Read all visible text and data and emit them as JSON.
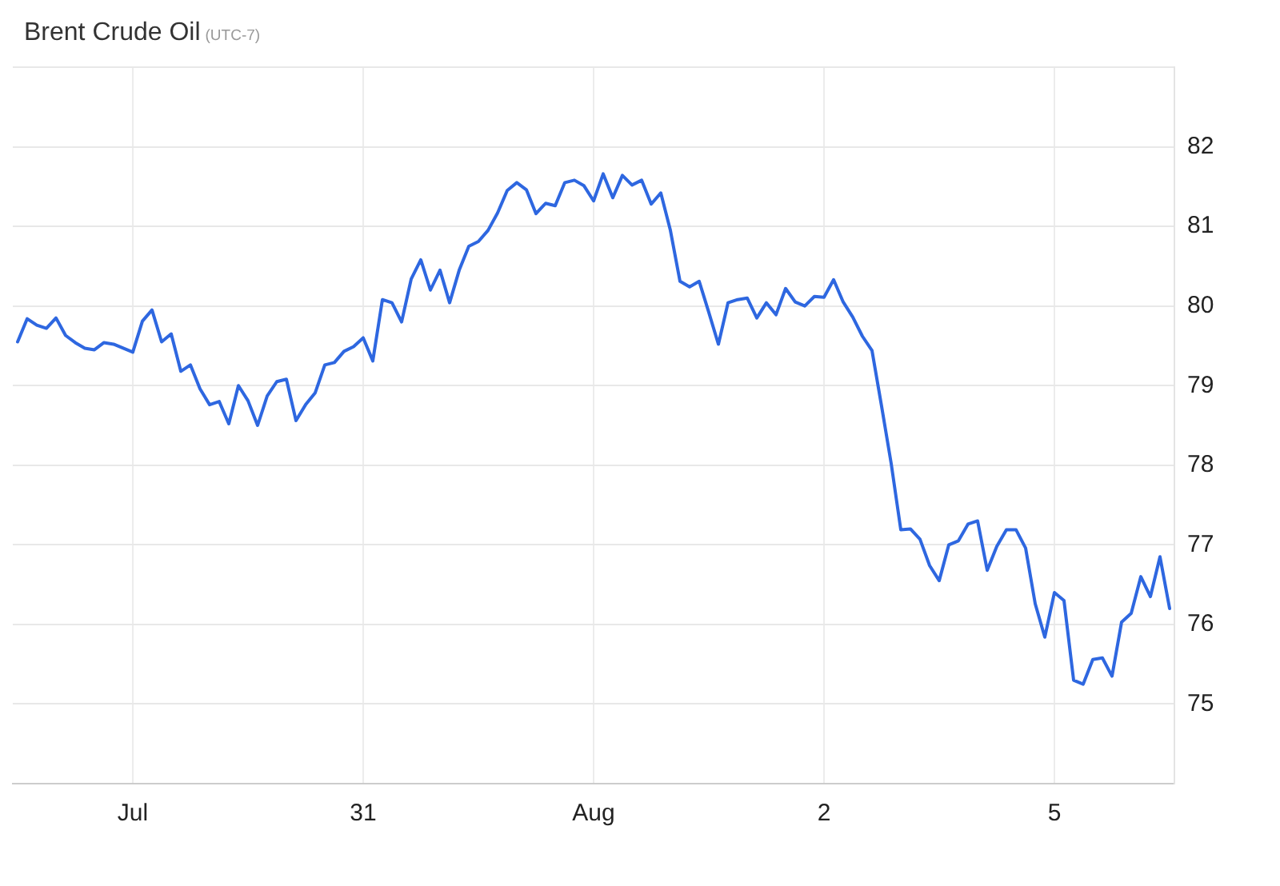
{
  "chart_data": {
    "type": "line",
    "title": "Brent Crude Oil",
    "subtitle": "(UTC-7)",
    "categories": [
      null,
      null,
      null,
      null,
      null,
      null,
      null,
      null,
      null,
      null,
      null,
      null,
      "Jul",
      null,
      null,
      null,
      null,
      null,
      null,
      null,
      null,
      null,
      null,
      null,
      null,
      null,
      null,
      null,
      null,
      null,
      null,
      null,
      null,
      null,
      null,
      null,
      "31",
      null,
      null,
      null,
      null,
      null,
      null,
      null,
      null,
      null,
      null,
      null,
      null,
      null,
      null,
      null,
      null,
      null,
      null,
      null,
      null,
      null,
      null,
      null,
      "Aug",
      null,
      null,
      null,
      null,
      null,
      null,
      null,
      null,
      null,
      null,
      null,
      null,
      null,
      null,
      null,
      null,
      null,
      null,
      null,
      null,
      null,
      null,
      null,
      "2",
      null,
      null,
      null,
      null,
      null,
      null,
      null,
      null,
      null,
      null,
      null,
      null,
      null,
      null,
      null,
      null,
      null,
      null,
      null,
      null,
      null,
      null,
      null,
      "5",
      null,
      null,
      null,
      null,
      null,
      null,
      null,
      null,
      null,
      null,
      null,
      null
    ],
    "ylim": [
      74,
      83
    ],
    "yticks": [
      75,
      76,
      77,
      78,
      79,
      80,
      81,
      82,
      {
        "value": 83,
        "label": null
      }
    ],
    "grid": true,
    "series": [
      {
        "color": "#2e67e0",
        "values": [
          79.55,
          79.84,
          79.76,
          79.72,
          79.85,
          79.63,
          79.54,
          79.47,
          79.45,
          79.54,
          79.52,
          79.47,
          79.42,
          79.81,
          79.95,
          79.55,
          79.65,
          79.18,
          79.26,
          78.96,
          78.76,
          78.8,
          78.52,
          79.0,
          78.81,
          78.5,
          78.87,
          79.05,
          79.08,
          78.56,
          78.76,
          78.91,
          79.26,
          79.29,
          79.43,
          79.49,
          79.6,
          79.31,
          80.08,
          80.04,
          79.8,
          80.34,
          80.58,
          80.2,
          80.45,
          80.04,
          80.45,
          80.75,
          80.81,
          80.95,
          81.17,
          81.45,
          81.55,
          81.46,
          81.16,
          81.29,
          81.26,
          81.55,
          81.58,
          81.51,
          81.32,
          81.66,
          81.36,
          81.64,
          81.52,
          81.58,
          81.28,
          81.42,
          80.95,
          80.31,
          80.24,
          80.31,
          79.92,
          79.52,
          80.04,
          80.08,
          80.1,
          79.85,
          80.04,
          79.89,
          80.22,
          80.05,
          80.0,
          80.12,
          80.11,
          80.33,
          80.05,
          79.86,
          79.62,
          79.44,
          78.74,
          78.02,
          77.19,
          77.2,
          77.07,
          76.74,
          76.55,
          77.0,
          77.05,
          77.26,
          77.3,
          76.68,
          76.98,
          77.19,
          77.19,
          76.96,
          76.26,
          75.84,
          76.4,
          76.3,
          75.3,
          75.25,
          75.56,
          75.58,
          75.35,
          76.03,
          76.14,
          76.6,
          76.35,
          76.85,
          76.2
        ]
      }
    ]
  }
}
